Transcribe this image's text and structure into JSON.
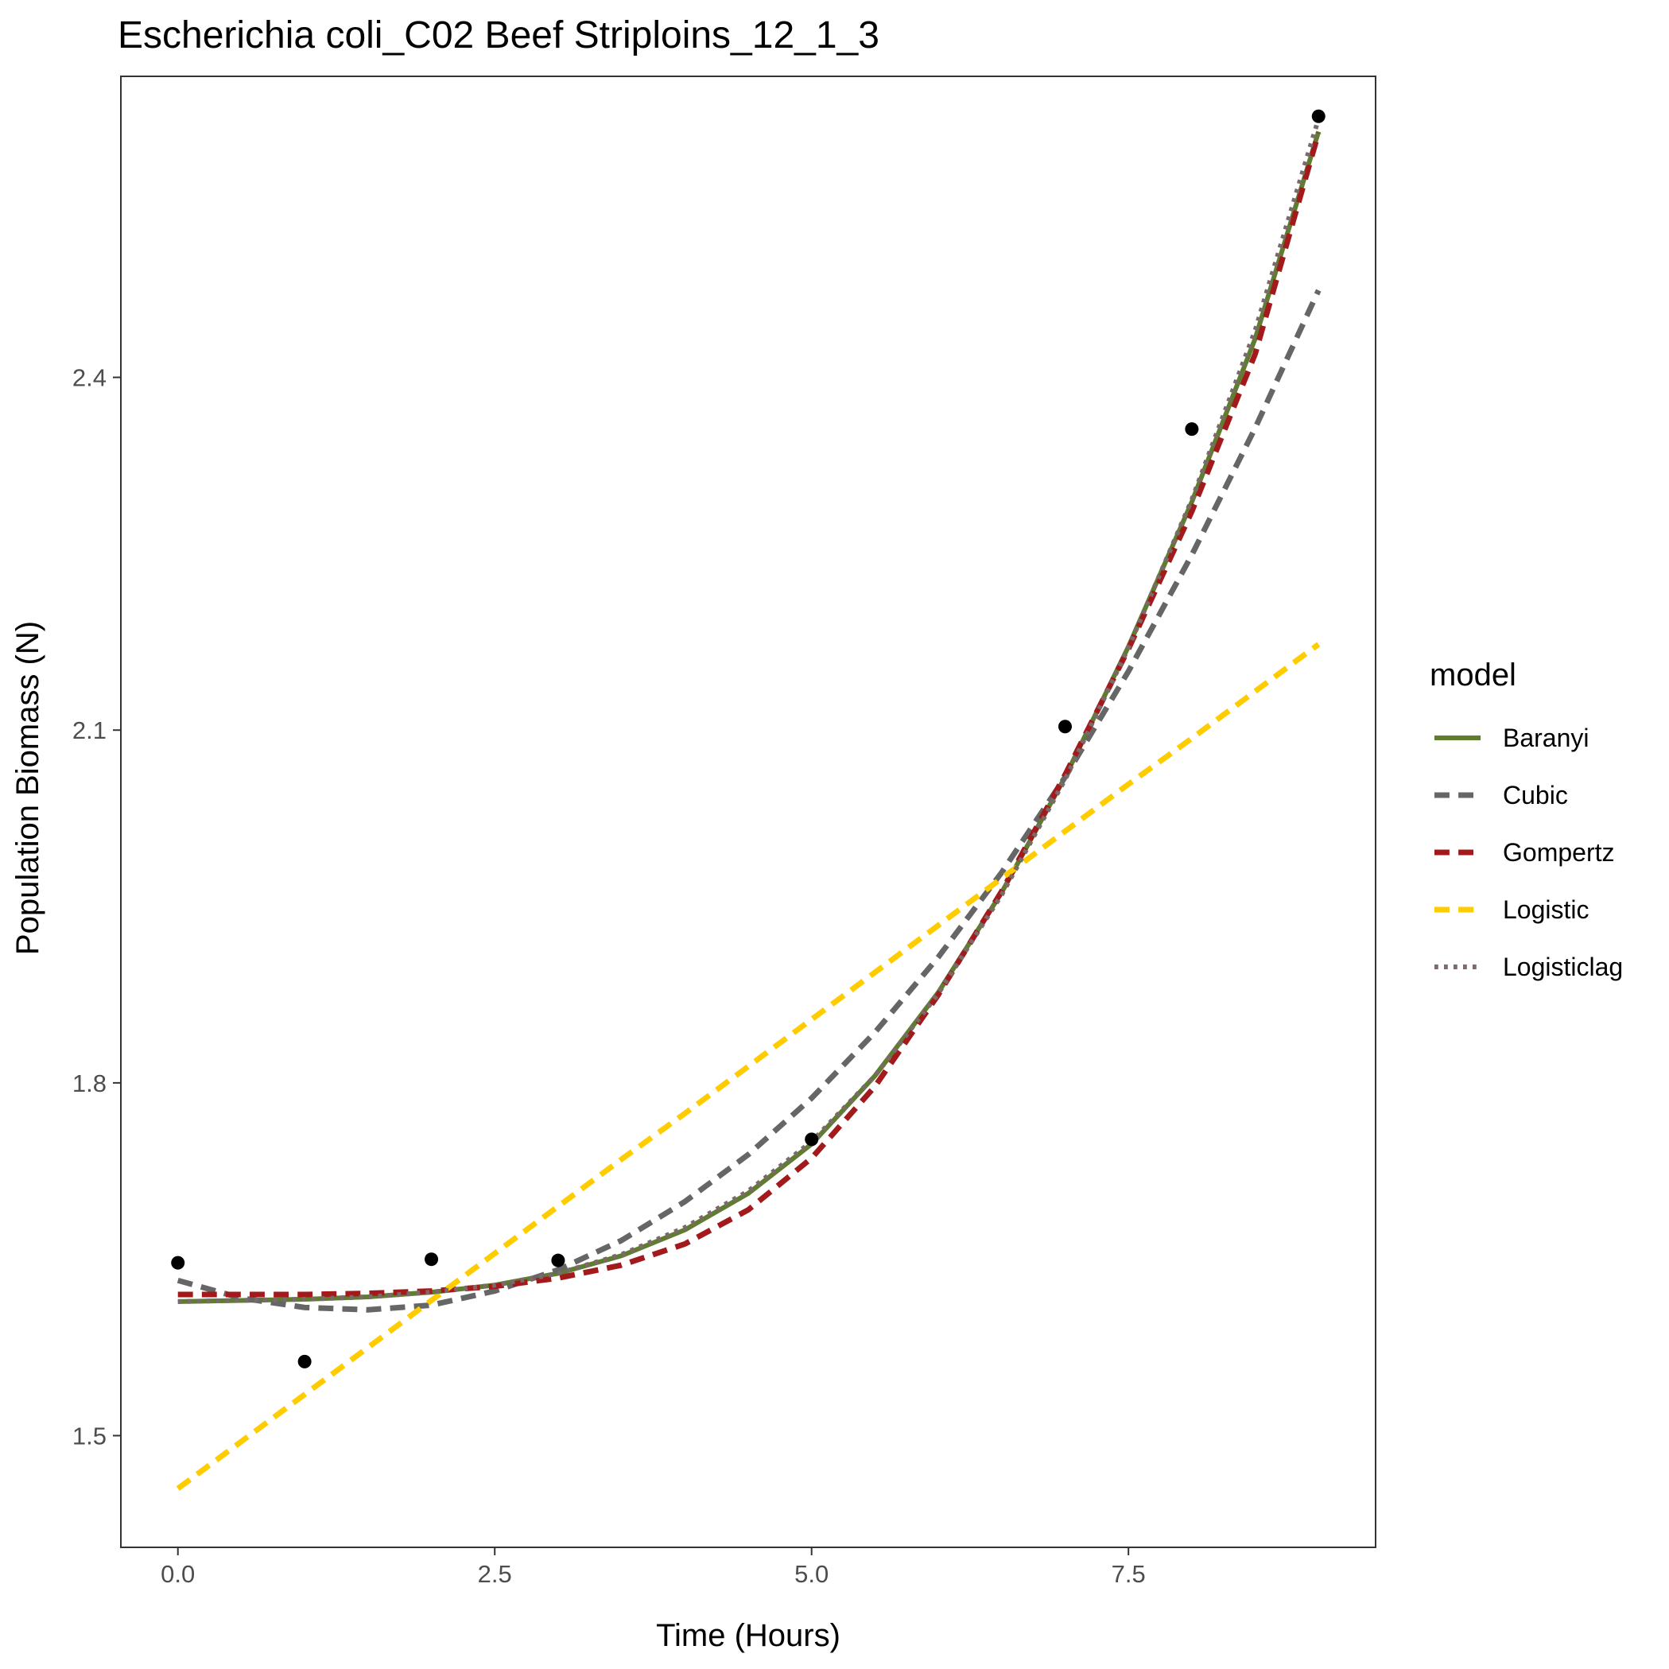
{
  "chart_data": {
    "type": "line",
    "title": "Escherichia coli_C02 Beef Striploins_12_1_3",
    "xlabel": "Time (Hours)",
    "ylabel": "Population Biomass (N)",
    "xlim": [
      -0.45,
      9.45
    ],
    "ylim": [
      1.405,
      2.656
    ],
    "x_ticks": [
      0.0,
      2.5,
      5.0,
      7.5
    ],
    "x_tick_labels": [
      "0.0",
      "2.5",
      "5.0",
      "7.5"
    ],
    "y_ticks": [
      1.5,
      1.8,
      2.1,
      2.4
    ],
    "y_tick_labels": [
      "1.5",
      "1.8",
      "2.1",
      "2.4"
    ],
    "grid": false,
    "legend": {
      "title": "model",
      "position": "right"
    },
    "points": {
      "x": [
        0,
        1,
        2,
        3,
        5,
        7,
        8,
        9
      ],
      "y": [
        1.647,
        1.563,
        1.65,
        1.649,
        1.752,
        2.103,
        2.356,
        2.622
      ]
    },
    "series": [
      {
        "name": "Baranyi",
        "color": "#5e7d2e",
        "dash": "solid",
        "x": [
          0,
          0.5,
          1,
          1.5,
          2,
          2.5,
          3,
          3.5,
          4,
          4.5,
          5,
          5.5,
          6,
          6.5,
          7,
          7.5,
          8,
          8.5,
          9
        ],
        "y": [
          1.614,
          1.615,
          1.616,
          1.618,
          1.622,
          1.628,
          1.638,
          1.653,
          1.675,
          1.706,
          1.748,
          1.806,
          1.877,
          1.962,
          2.06,
          2.171,
          2.294,
          2.433,
          2.609
        ]
      },
      {
        "name": "Cubic",
        "color": "#666666",
        "dash": "dashed",
        "x": [
          0,
          0.5,
          1,
          1.5,
          2,
          2.5,
          3,
          3.5,
          4,
          4.5,
          5,
          5.5,
          6,
          6.5,
          7,
          7.5,
          8,
          8.5,
          9
        ],
        "y": [
          1.632,
          1.617,
          1.609,
          1.607,
          1.611,
          1.623,
          1.641,
          1.666,
          1.699,
          1.739,
          1.787,
          1.843,
          1.907,
          1.979,
          2.06,
          2.15,
          2.249,
          2.357,
          2.474
        ]
      },
      {
        "name": "Gompertz",
        "color": "#a31a1c",
        "dash": "dashed",
        "x": [
          0,
          0.5,
          1,
          1.5,
          2,
          2.5,
          3,
          3.5,
          4,
          4.5,
          5,
          5.5,
          6,
          6.5,
          7,
          7.5,
          8,
          8.5,
          9
        ],
        "y": [
          1.62,
          1.62,
          1.62,
          1.621,
          1.623,
          1.627,
          1.634,
          1.645,
          1.663,
          1.692,
          1.736,
          1.797,
          1.875,
          1.963,
          2.062,
          2.169,
          2.286,
          2.42,
          2.608
        ]
      },
      {
        "name": "Logistic",
        "color": "#ffcc00",
        "dash": "dashed",
        "x": [
          0,
          0.5,
          1,
          1.5,
          2,
          2.5,
          3,
          3.5,
          4,
          4.5,
          5,
          5.5,
          6,
          6.5,
          7,
          7.5,
          8,
          8.5,
          9
        ],
        "y": [
          1.455,
          1.495,
          1.535,
          1.575,
          1.615,
          1.655,
          1.695,
          1.735,
          1.774,
          1.814,
          1.854,
          1.894,
          1.934,
          1.974,
          2.014,
          2.054,
          2.093,
          2.133,
          2.173
        ]
      },
      {
        "name": "Logisticlag",
        "color": "#7a6a6a",
        "dash": "dotted",
        "x": [
          0,
          0.5,
          1,
          1.5,
          2,
          2.5,
          3,
          3.5,
          4,
          4.5,
          5,
          5.5,
          6,
          6.5,
          7,
          7.5,
          8,
          8.5,
          9
        ],
        "y": [
          1.614,
          1.615,
          1.616,
          1.618,
          1.622,
          1.628,
          1.638,
          1.654,
          1.677,
          1.708,
          1.75,
          1.806,
          1.876,
          1.96,
          2.058,
          2.17,
          2.296,
          2.44,
          2.62
        ]
      }
    ]
  }
}
